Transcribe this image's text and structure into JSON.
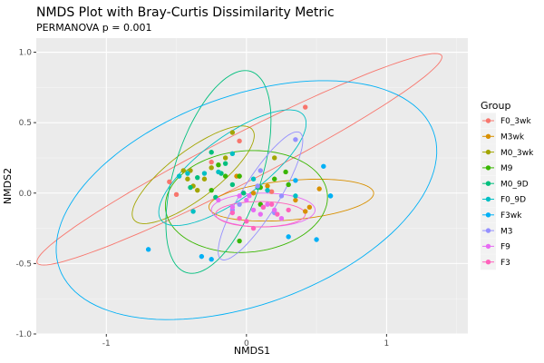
{
  "chart_data": {
    "type": "scatter",
    "title": "NMDS Plot with Bray-Curtis Dissimilarity Metric",
    "subtitle": "PERMANOVA p = 0.001",
    "xlabel": "NMDS1",
    "ylabel": "NMDS2",
    "xlim": [
      -1.5,
      1.58
    ],
    "ylim": [
      -1.0,
      1.1
    ],
    "x_ticks": [
      -1,
      0,
      1
    ],
    "x_tick_labels": [
      "-1",
      "0",
      "1"
    ],
    "y_ticks": [
      -1.0,
      -0.5,
      0.0,
      0.5,
      1.0
    ],
    "y_tick_labels": [
      "-1.0",
      "-0.5",
      "0.0",
      "0.5",
      "1.0"
    ],
    "grid": true,
    "legend_title": "Group",
    "legend_position": "right",
    "series": [
      {
        "name": "F0_3wk",
        "color": "#F8766D",
        "points": [
          [
            -0.55,
            0.08
          ],
          [
            -0.5,
            -0.01
          ],
          [
            -0.05,
            0.37
          ],
          [
            0.42,
            0.61
          ],
          [
            0.18,
            0.01
          ],
          [
            -0.25,
            0.22
          ]
        ],
        "ellipse": {
          "cx": -0.05,
          "cy": 0.24,
          "rx": 1.62,
          "ry": 0.17,
          "angle_deg": 27
        }
      },
      {
        "name": "M3wk",
        "color": "#D89000",
        "points": [
          [
            0.52,
            0.03
          ],
          [
            0.45,
            -0.1
          ],
          [
            0.42,
            -0.13
          ],
          [
            -0.07,
            0.12
          ],
          [
            0.15,
            0.05
          ],
          [
            0.35,
            -0.05
          ],
          [
            0.05,
            0.0
          ]
        ],
        "ellipse": {
          "cx": 0.32,
          "cy": -0.05,
          "rx": 0.59,
          "ry": 0.14,
          "angle_deg": 5
        }
      },
      {
        "name": "M0_3wk",
        "color": "#A3A500",
        "points": [
          [
            -0.45,
            0.16
          ],
          [
            -0.4,
            0.16
          ],
          [
            -0.3,
            0.1
          ],
          [
            -0.25,
            0.18
          ],
          [
            -0.1,
            0.43
          ],
          [
            -0.42,
            0.1
          ],
          [
            -0.38,
            0.05
          ],
          [
            -0.15,
            0.25
          ],
          [
            -0.05,
            0.12
          ],
          [
            0.2,
            0.25
          ],
          [
            -0.35,
            0.02
          ]
        ],
        "ellipse": {
          "cx": -0.38,
          "cy": 0.13,
          "rx": 0.53,
          "ry": 0.17,
          "angle_deg": 37
        }
      },
      {
        "name": "M9",
        "color": "#39B600",
        "points": [
          [
            -0.2,
            0.2
          ],
          [
            -0.05,
            0.12
          ],
          [
            0.1,
            0.04
          ],
          [
            0.2,
            0.1
          ],
          [
            -0.05,
            -0.34
          ],
          [
            0.28,
            0.15
          ],
          [
            0.1,
            -0.08
          ],
          [
            -0.15,
            0.12
          ],
          [
            0.3,
            0.06
          ],
          [
            -0.25,
            0.02
          ]
        ],
        "ellipse": {
          "cx": 0.0,
          "cy": -0.06,
          "rx": 0.58,
          "ry": 0.36,
          "angle_deg": 5
        }
      },
      {
        "name": "M0_9D",
        "color": "#00BF7D",
        "points": [
          [
            -0.35,
            0.11
          ],
          [
            -0.25,
            0.29
          ],
          [
            -0.15,
            0.21
          ],
          [
            -0.1,
            0.06
          ],
          [
            -0.02,
            0.0
          ],
          [
            0.08,
            0.04
          ],
          [
            -0.22,
            -0.03
          ],
          [
            -0.4,
            0.04
          ],
          [
            -0.18,
            0.14
          ]
        ],
        "ellipse": {
          "cx": -0.2,
          "cy": 0.15,
          "rx": 0.75,
          "ry": 0.31,
          "angle_deg": 72
        }
      },
      {
        "name": "F0_9D",
        "color": "#00BFC4",
        "points": [
          [
            -0.48,
            0.12
          ],
          [
            -0.3,
            0.14
          ],
          [
            -0.1,
            0.28
          ],
          [
            0.35,
            -0.02
          ],
          [
            0.6,
            -0.02
          ],
          [
            -0.38,
            -0.13
          ],
          [
            0.15,
            0.02
          ],
          [
            -0.42,
            0.14
          ],
          [
            -0.2,
            0.15
          ],
          [
            0.05,
            0.1
          ]
        ],
        "ellipse": {
          "cx": -0.1,
          "cy": 0.18,
          "rx": 0.63,
          "ry": 0.22,
          "angle_deg": 36
        }
      },
      {
        "name": "F3wk",
        "color": "#00B0F6",
        "points": [
          [
            -0.7,
            -0.4
          ],
          [
            -0.32,
            -0.45
          ],
          [
            -0.25,
            -0.47
          ],
          [
            0.3,
            -0.31
          ],
          [
            0.5,
            -0.33
          ],
          [
            0.55,
            0.19
          ],
          [
            0.35,
            0.09
          ],
          [
            0.6,
            -0.02
          ]
        ],
        "ellipse": {
          "cx": 0.0,
          "cy": -0.05,
          "rx": 1.42,
          "ry": 0.74,
          "angle_deg": 20
        }
      },
      {
        "name": "M3",
        "color": "#9590FF",
        "points": [
          [
            0.35,
            0.38
          ],
          [
            0.1,
            0.16
          ],
          [
            0.2,
            -0.14
          ],
          [
            -0.05,
            -0.08
          ],
          [
            0.12,
            -0.1
          ],
          [
            0.08,
            0.05
          ],
          [
            0.25,
            -0.02
          ],
          [
            -0.1,
            -0.12
          ]
        ],
        "ellipse": {
          "cx": 0.1,
          "cy": -0.02,
          "rx": 0.53,
          "ry": 0.13,
          "angle_deg": 58
        }
      },
      {
        "name": "F9",
        "color": "#E76BF3",
        "points": [
          [
            -0.2,
            -0.05
          ],
          [
            -0.1,
            -0.1
          ],
          [
            0.0,
            -0.05
          ],
          [
            0.05,
            -0.12
          ],
          [
            0.1,
            -0.15
          ],
          [
            0.15,
            -0.08
          ],
          [
            0.2,
            -0.12
          ],
          [
            -0.05,
            -0.02
          ],
          [
            0.25,
            -0.18
          ],
          [
            0.02,
            -0.02
          ]
        ],
        "ellipse": {
          "cx": 0.12,
          "cy": -0.12,
          "rx": 0.37,
          "ry": 0.12,
          "angle_deg": 0
        }
      },
      {
        "name": "F3",
        "color": "#FF62BC",
        "points": [
          [
            -0.1,
            -0.14
          ],
          [
            0.0,
            -0.2
          ],
          [
            0.12,
            -0.1
          ],
          [
            0.18,
            -0.08
          ],
          [
            0.05,
            -0.25
          ],
          [
            0.22,
            -0.15
          ],
          [
            -0.05,
            -0.18
          ],
          [
            0.3,
            -0.12
          ]
        ],
        "ellipse": {
          "cx": 0.1,
          "cy": -0.15,
          "rx": 0.32,
          "ry": 0.09,
          "angle_deg": 0
        }
      }
    ]
  }
}
